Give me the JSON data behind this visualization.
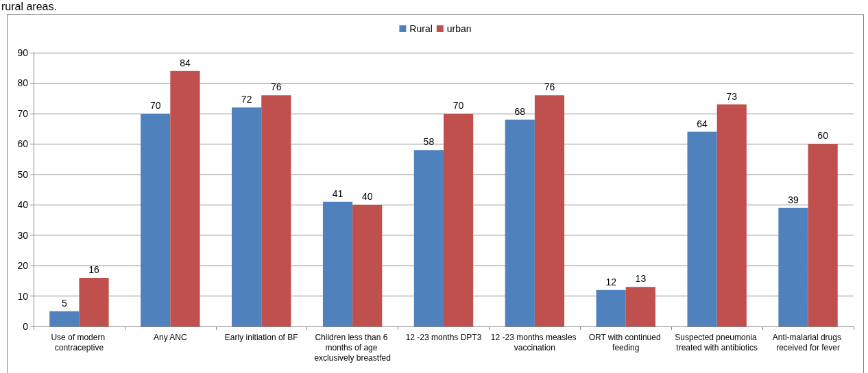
{
  "chart_data": {
    "type": "bar",
    "annotations": [
      "rural areas."
    ],
    "categories": [
      "Use of modern contraceptive",
      "Any ANC",
      "Early initiation of BF",
      "Children less than 6 months of age exclusively breastfed",
      "12 -23 months DPT3",
      "12 -23 months measles vaccination",
      "ORT with continued feeding",
      "Suspected pneumonia treated with antibiotics",
      "Anti-malarial drugs received for fever"
    ],
    "series": [
      {
        "name": "Rural",
        "color": "#4f81bd",
        "values": [
          5,
          70,
          72,
          41,
          58,
          68,
          12,
          64,
          39
        ]
      },
      {
        "name": "urban",
        "color": "#c0504d",
        "values": [
          16,
          84,
          76,
          40,
          70,
          76,
          13,
          73,
          60
        ]
      }
    ],
    "ylim": [
      0,
      90
    ],
    "yticks": [
      0,
      10,
      20,
      30,
      40,
      50,
      60,
      70,
      80,
      90
    ],
    "grid": "y",
    "legend": "top",
    "data_labels": true
  }
}
